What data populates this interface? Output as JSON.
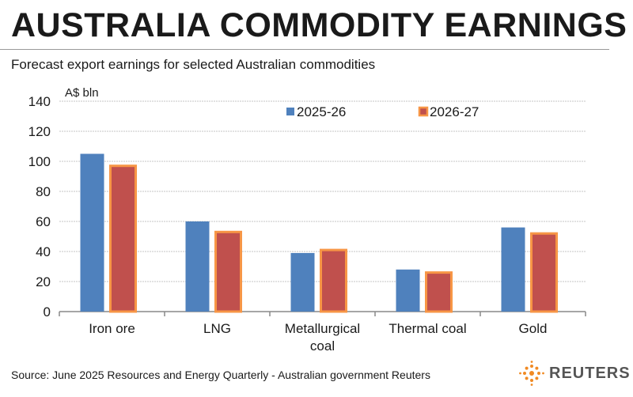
{
  "title": "AUSTRALIA COMMODITY EARNINGS",
  "subtitle": "Forecast export earnings for selected Australian commodities",
  "source": "Source: June 2025 Resources and Energy Quarterly - Australian government    Reuters",
  "logo_text": "REUTERS",
  "chart_data": {
    "type": "bar",
    "ylabel": "A$ bln",
    "ylim": [
      0,
      140
    ],
    "yticks": [
      0,
      20,
      40,
      60,
      80,
      100,
      120,
      140
    ],
    "grid": true,
    "legend_position": "top",
    "categories": [
      "Iron ore",
      "LNG",
      "Metallurgical coal",
      "Thermal coal",
      "Gold"
    ],
    "series": [
      {
        "name": "2025-26",
        "color": "#4f81bd",
        "values": [
          105,
          60,
          39,
          28,
          56
        ]
      },
      {
        "name": "2026-27",
        "color": "#c0504d",
        "border": "#f79646",
        "values": [
          97,
          53,
          41,
          26,
          52
        ]
      }
    ]
  }
}
